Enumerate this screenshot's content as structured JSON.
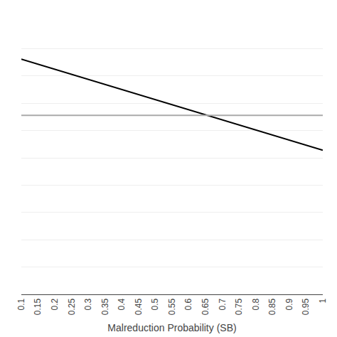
{
  "chart_data": {
    "type": "line",
    "x": [
      0.1,
      1.0
    ],
    "series": [
      {
        "color": "#000000",
        "values": [
          1.55,
          0.95
        ]
      },
      {
        "color": "#aaaaaa",
        "values": [
          1.18,
          1.18
        ]
      }
    ],
    "x_label": "Malreduction Probability (SB)",
    "xlim": [
      0.1,
      1.0
    ],
    "xticks": [
      0.1,
      0.15,
      0.2,
      0.25,
      0.3,
      0.35,
      0.4,
      0.45,
      0.5,
      0.55,
      0.6,
      0.65,
      0.7,
      0.75,
      0.8,
      0.85,
      0.9,
      0.95,
      1
    ],
    "ylim": [
      0.0,
      1.8
    ],
    "yticks": [
      0,
      0.18,
      0.36,
      0.54,
      0.72,
      0.9,
      1.08,
      1.26,
      1.44,
      1.62,
      1.8
    ],
    "grid": true,
    "tick_labels": "x"
  }
}
